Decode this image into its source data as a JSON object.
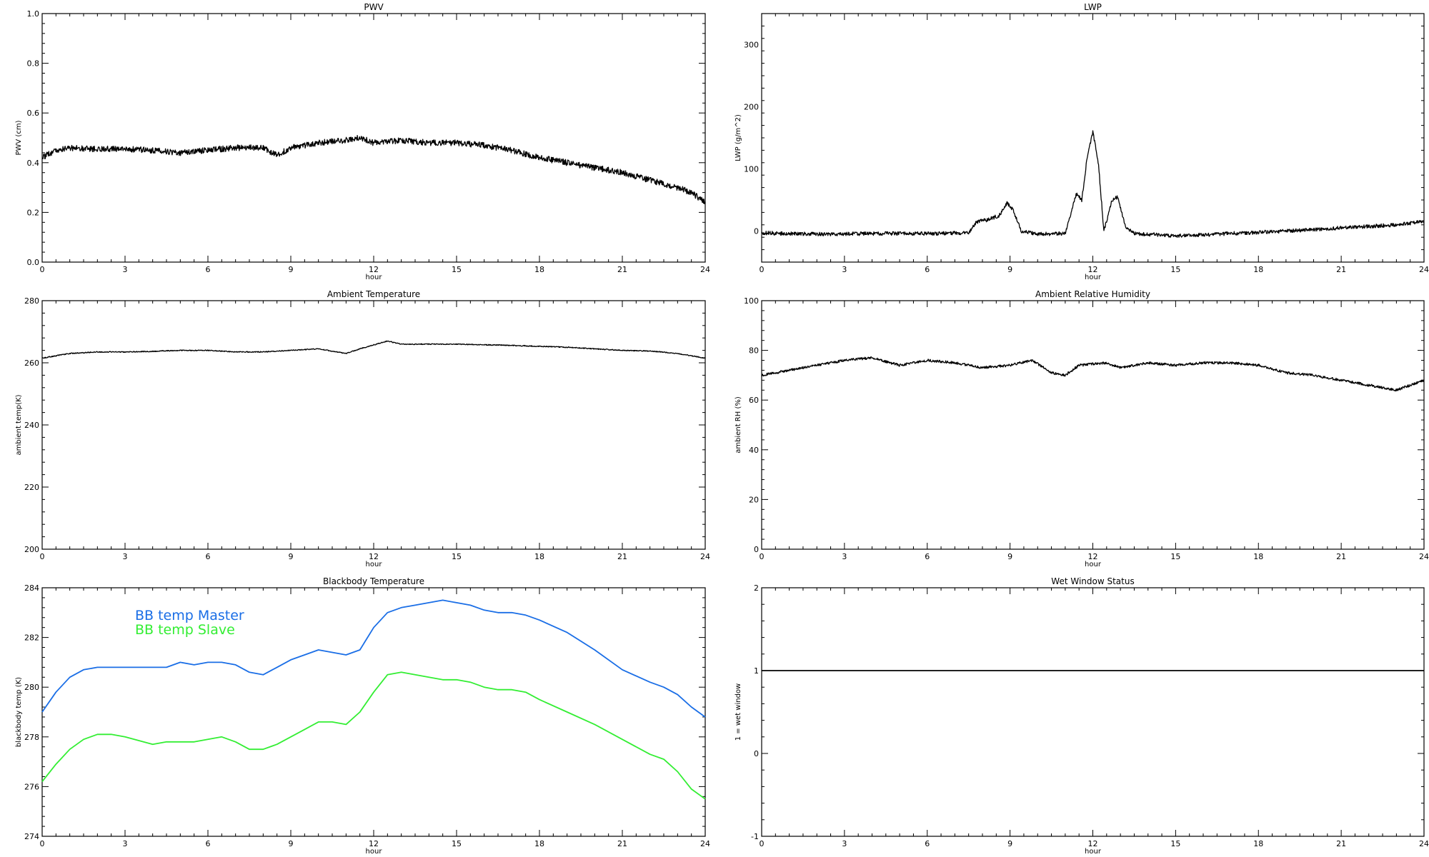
{
  "chart_data": [
    {
      "type": "line",
      "title": "PWV",
      "xlabel": "hour",
      "ylabel": "PWV (cm)",
      "xlim": [
        0,
        24
      ],
      "ylim": [
        0,
        1
      ],
      "xticks": [
        0,
        3,
        6,
        9,
        12,
        15,
        18,
        21,
        24
      ],
      "xtick_labels": [
        "0",
        "3",
        "6",
        "9",
        "12",
        "15",
        "18",
        "21",
        "24"
      ],
      "yticks": [
        0,
        0.2,
        0.4,
        0.6,
        0.8,
        1
      ],
      "ytick_labels": [
        "0.0",
        "0.2",
        "0.4",
        "0.6",
        "0.8",
        "1.0"
      ],
      "grid": false,
      "series": [
        {
          "color": "#000000",
          "noise": 0.012,
          "x": [
            0,
            0.5,
            1,
            2,
            3,
            4,
            5,
            6,
            7,
            8,
            8.5,
            9,
            10,
            11,
            11.5,
            12,
            13,
            14,
            15,
            16,
            17,
            18,
            19,
            20,
            21,
            22,
            23,
            23.5,
            24
          ],
          "y": [
            0.42,
            0.45,
            0.46,
            0.455,
            0.455,
            0.45,
            0.44,
            0.45,
            0.46,
            0.46,
            0.43,
            0.46,
            0.48,
            0.49,
            0.5,
            0.48,
            0.49,
            0.48,
            0.48,
            0.47,
            0.45,
            0.42,
            0.4,
            0.38,
            0.36,
            0.33,
            0.3,
            0.28,
            0.24
          ]
        }
      ]
    },
    {
      "type": "line",
      "title": "LWP",
      "xlabel": "hour",
      "ylabel": "LWP (g/m^2)",
      "xlim": [
        0,
        24
      ],
      "ylim": [
        -50,
        350
      ],
      "xticks": [
        0,
        3,
        6,
        9,
        12,
        15,
        18,
        21,
        24
      ],
      "xtick_labels": [
        "0",
        "3",
        "6",
        "9",
        "12",
        "15",
        "18",
        "21",
        "24"
      ],
      "yticks": [
        0,
        100,
        200,
        300
      ],
      "ytick_labels": [
        "0",
        "100",
        "200",
        "300"
      ],
      "grid": false,
      "series": [
        {
          "color": "#000000",
          "noise": 3,
          "x": [
            0,
            2,
            4,
            6,
            7.5,
            7.8,
            8.2,
            8.6,
            8.9,
            9.1,
            9.4,
            10,
            11,
            11.4,
            11.6,
            11.8,
            12,
            12.2,
            12.4,
            12.7,
            12.9,
            13.2,
            13.5,
            15,
            17,
            19,
            21,
            23,
            24
          ],
          "y": [
            -3,
            -5,
            -4,
            -4,
            -3,
            15,
            18,
            25,
            45,
            35,
            0,
            -5,
            -4,
            60,
            50,
            120,
            160,
            110,
            0,
            50,
            55,
            5,
            -4,
            -8,
            -4,
            0,
            5,
            10,
            15
          ]
        }
      ]
    },
    {
      "type": "line",
      "title": "Ambient Temperature",
      "xlabel": "hour",
      "ylabel": "ambient temp(K)",
      "xlim": [
        0,
        24
      ],
      "ylim": [
        200,
        280
      ],
      "xticks": [
        0,
        3,
        6,
        9,
        12,
        15,
        18,
        21,
        24
      ],
      "xtick_labels": [
        "0",
        "3",
        "6",
        "9",
        "12",
        "15",
        "18",
        "21",
        "24"
      ],
      "yticks": [
        200,
        220,
        240,
        260,
        280
      ],
      "ytick_labels": [
        "200",
        "220",
        "240",
        "260",
        "280"
      ],
      "grid": false,
      "series": [
        {
          "color": "#000000",
          "noise": 0.15,
          "x": [
            0,
            1,
            2,
            3,
            4,
            5,
            6,
            7,
            8,
            9,
            10,
            11,
            11.5,
            12.5,
            13,
            14,
            15,
            16,
            17,
            18,
            19,
            20,
            21,
            22,
            23,
            24
          ],
          "y": [
            261.5,
            263,
            263.5,
            263.5,
            263.7,
            264,
            264,
            263.5,
            263.5,
            264,
            264.5,
            263,
            264.5,
            267,
            266,
            266,
            266,
            265.8,
            265.6,
            265.3,
            265,
            264.5,
            264,
            263.8,
            263,
            261.5
          ]
        }
      ]
    },
    {
      "type": "line",
      "title": "Ambient Relative Humidity",
      "xlabel": "hour",
      "ylabel": "ambient RH (%)",
      "xlim": [
        0,
        24
      ],
      "ylim": [
        0,
        100
      ],
      "xticks": [
        0,
        3,
        6,
        9,
        12,
        15,
        18,
        21,
        24
      ],
      "xtick_labels": [
        "0",
        "3",
        "6",
        "9",
        "12",
        "15",
        "18",
        "21",
        "24"
      ],
      "yticks": [
        0,
        20,
        40,
        60,
        80,
        100
      ],
      "ytick_labels": [
        "0",
        "20",
        "40",
        "60",
        "80",
        "100"
      ],
      "grid": false,
      "series": [
        {
          "color": "#000000",
          "noise": 0.5,
          "x": [
            0,
            0.5,
            1,
            2,
            3,
            4,
            5,
            6,
            7,
            8,
            9,
            9.8,
            10.5,
            11,
            11.5,
            12.5,
            13,
            14,
            15,
            16,
            17,
            18,
            19,
            20,
            21,
            22,
            23,
            23.5,
            24
          ],
          "y": [
            70,
            71,
            72,
            74,
            76,
            77,
            74,
            76,
            75,
            73,
            74,
            76,
            71,
            70,
            74,
            75,
            73,
            75,
            74,
            75,
            75,
            74,
            71,
            70,
            68,
            66,
            64,
            66,
            68
          ]
        }
      ]
    },
    {
      "type": "line",
      "title": "Blackbody Temperature",
      "xlabel": "hour",
      "ylabel": "blackbody temp (K)",
      "xlim": [
        0,
        24
      ],
      "ylim": [
        274,
        284
      ],
      "xticks": [
        0,
        3,
        6,
        9,
        12,
        15,
        18,
        21,
        24
      ],
      "xtick_labels": [
        "0",
        "3",
        "6",
        "9",
        "12",
        "15",
        "18",
        "21",
        "24"
      ],
      "yticks": [
        274,
        276,
        278,
        280,
        282,
        284
      ],
      "ytick_labels": [
        "274",
        "276",
        "278",
        "280",
        "282",
        "284"
      ],
      "grid": false,
      "legend": "top-left",
      "series": [
        {
          "name": "BB temp Master",
          "color": "#1a6ee6",
          "noise": 0,
          "x": [
            0,
            0.5,
            1,
            1.5,
            2,
            3,
            4,
            4.5,
            5,
            5.5,
            6,
            6.5,
            7,
            7.5,
            8,
            8.5,
            9,
            9.5,
            10,
            10.5,
            11,
            11.5,
            12,
            12.5,
            13,
            13.5,
            14,
            14.5,
            15,
            15.5,
            16,
            16.5,
            17,
            17.5,
            18,
            19,
            20,
            21,
            22,
            22.5,
            23,
            23.5,
            24
          ],
          "y": [
            279,
            279.8,
            280.4,
            280.7,
            280.8,
            280.8,
            280.8,
            280.8,
            281,
            280.9,
            281,
            281,
            280.9,
            280.6,
            280.5,
            280.8,
            281.1,
            281.3,
            281.5,
            281.4,
            281.3,
            281.5,
            282.4,
            283,
            283.2,
            283.3,
            283.4,
            283.5,
            283.4,
            283.3,
            283.1,
            283,
            283,
            282.9,
            282.7,
            282.2,
            281.5,
            280.7,
            280.2,
            280,
            279.7,
            279.2,
            278.8
          ]
        },
        {
          "name": "BB temp Slave",
          "color": "#33ee33",
          "noise": 0,
          "x": [
            0,
            0.5,
            1,
            1.5,
            2,
            2.5,
            3,
            4,
            4.5,
            5,
            5.5,
            6,
            6.5,
            7,
            7.5,
            8,
            8.5,
            9,
            9.5,
            10,
            10.5,
            11,
            11.5,
            12,
            12.5,
            13,
            13.5,
            14,
            14.5,
            15,
            15.5,
            16,
            16.5,
            17,
            17.5,
            18,
            19,
            20,
            21,
            22,
            22.5,
            23,
            23.5,
            24
          ],
          "y": [
            276.2,
            276.9,
            277.5,
            277.9,
            278.1,
            278.1,
            278,
            277.7,
            277.8,
            277.8,
            277.8,
            277.9,
            278,
            277.8,
            277.5,
            277.5,
            277.7,
            278,
            278.3,
            278.6,
            278.6,
            278.5,
            279,
            279.8,
            280.5,
            280.6,
            280.5,
            280.4,
            280.3,
            280.3,
            280.2,
            280,
            279.9,
            279.9,
            279.8,
            279.5,
            279,
            278.5,
            277.9,
            277.3,
            277.1,
            276.6,
            275.9,
            275.5
          ]
        }
      ]
    },
    {
      "type": "line",
      "title": "Wet Window Status",
      "xlabel": "hour",
      "ylabel": "1 = wet window",
      "xlim": [
        0,
        24
      ],
      "ylim": [
        -1,
        2
      ],
      "xticks": [
        0,
        3,
        6,
        9,
        12,
        15,
        18,
        21,
        24
      ],
      "xtick_labels": [
        "0",
        "3",
        "6",
        "9",
        "12",
        "15",
        "18",
        "21",
        "24"
      ],
      "yticks": [
        -1,
        0,
        1,
        2
      ],
      "ytick_labels": [
        "-1",
        "0",
        "1",
        "2"
      ],
      "grid": false,
      "series": [
        {
          "color": "#000000",
          "noise": 0,
          "x": [
            0,
            24
          ],
          "y": [
            1,
            1
          ]
        }
      ]
    }
  ]
}
